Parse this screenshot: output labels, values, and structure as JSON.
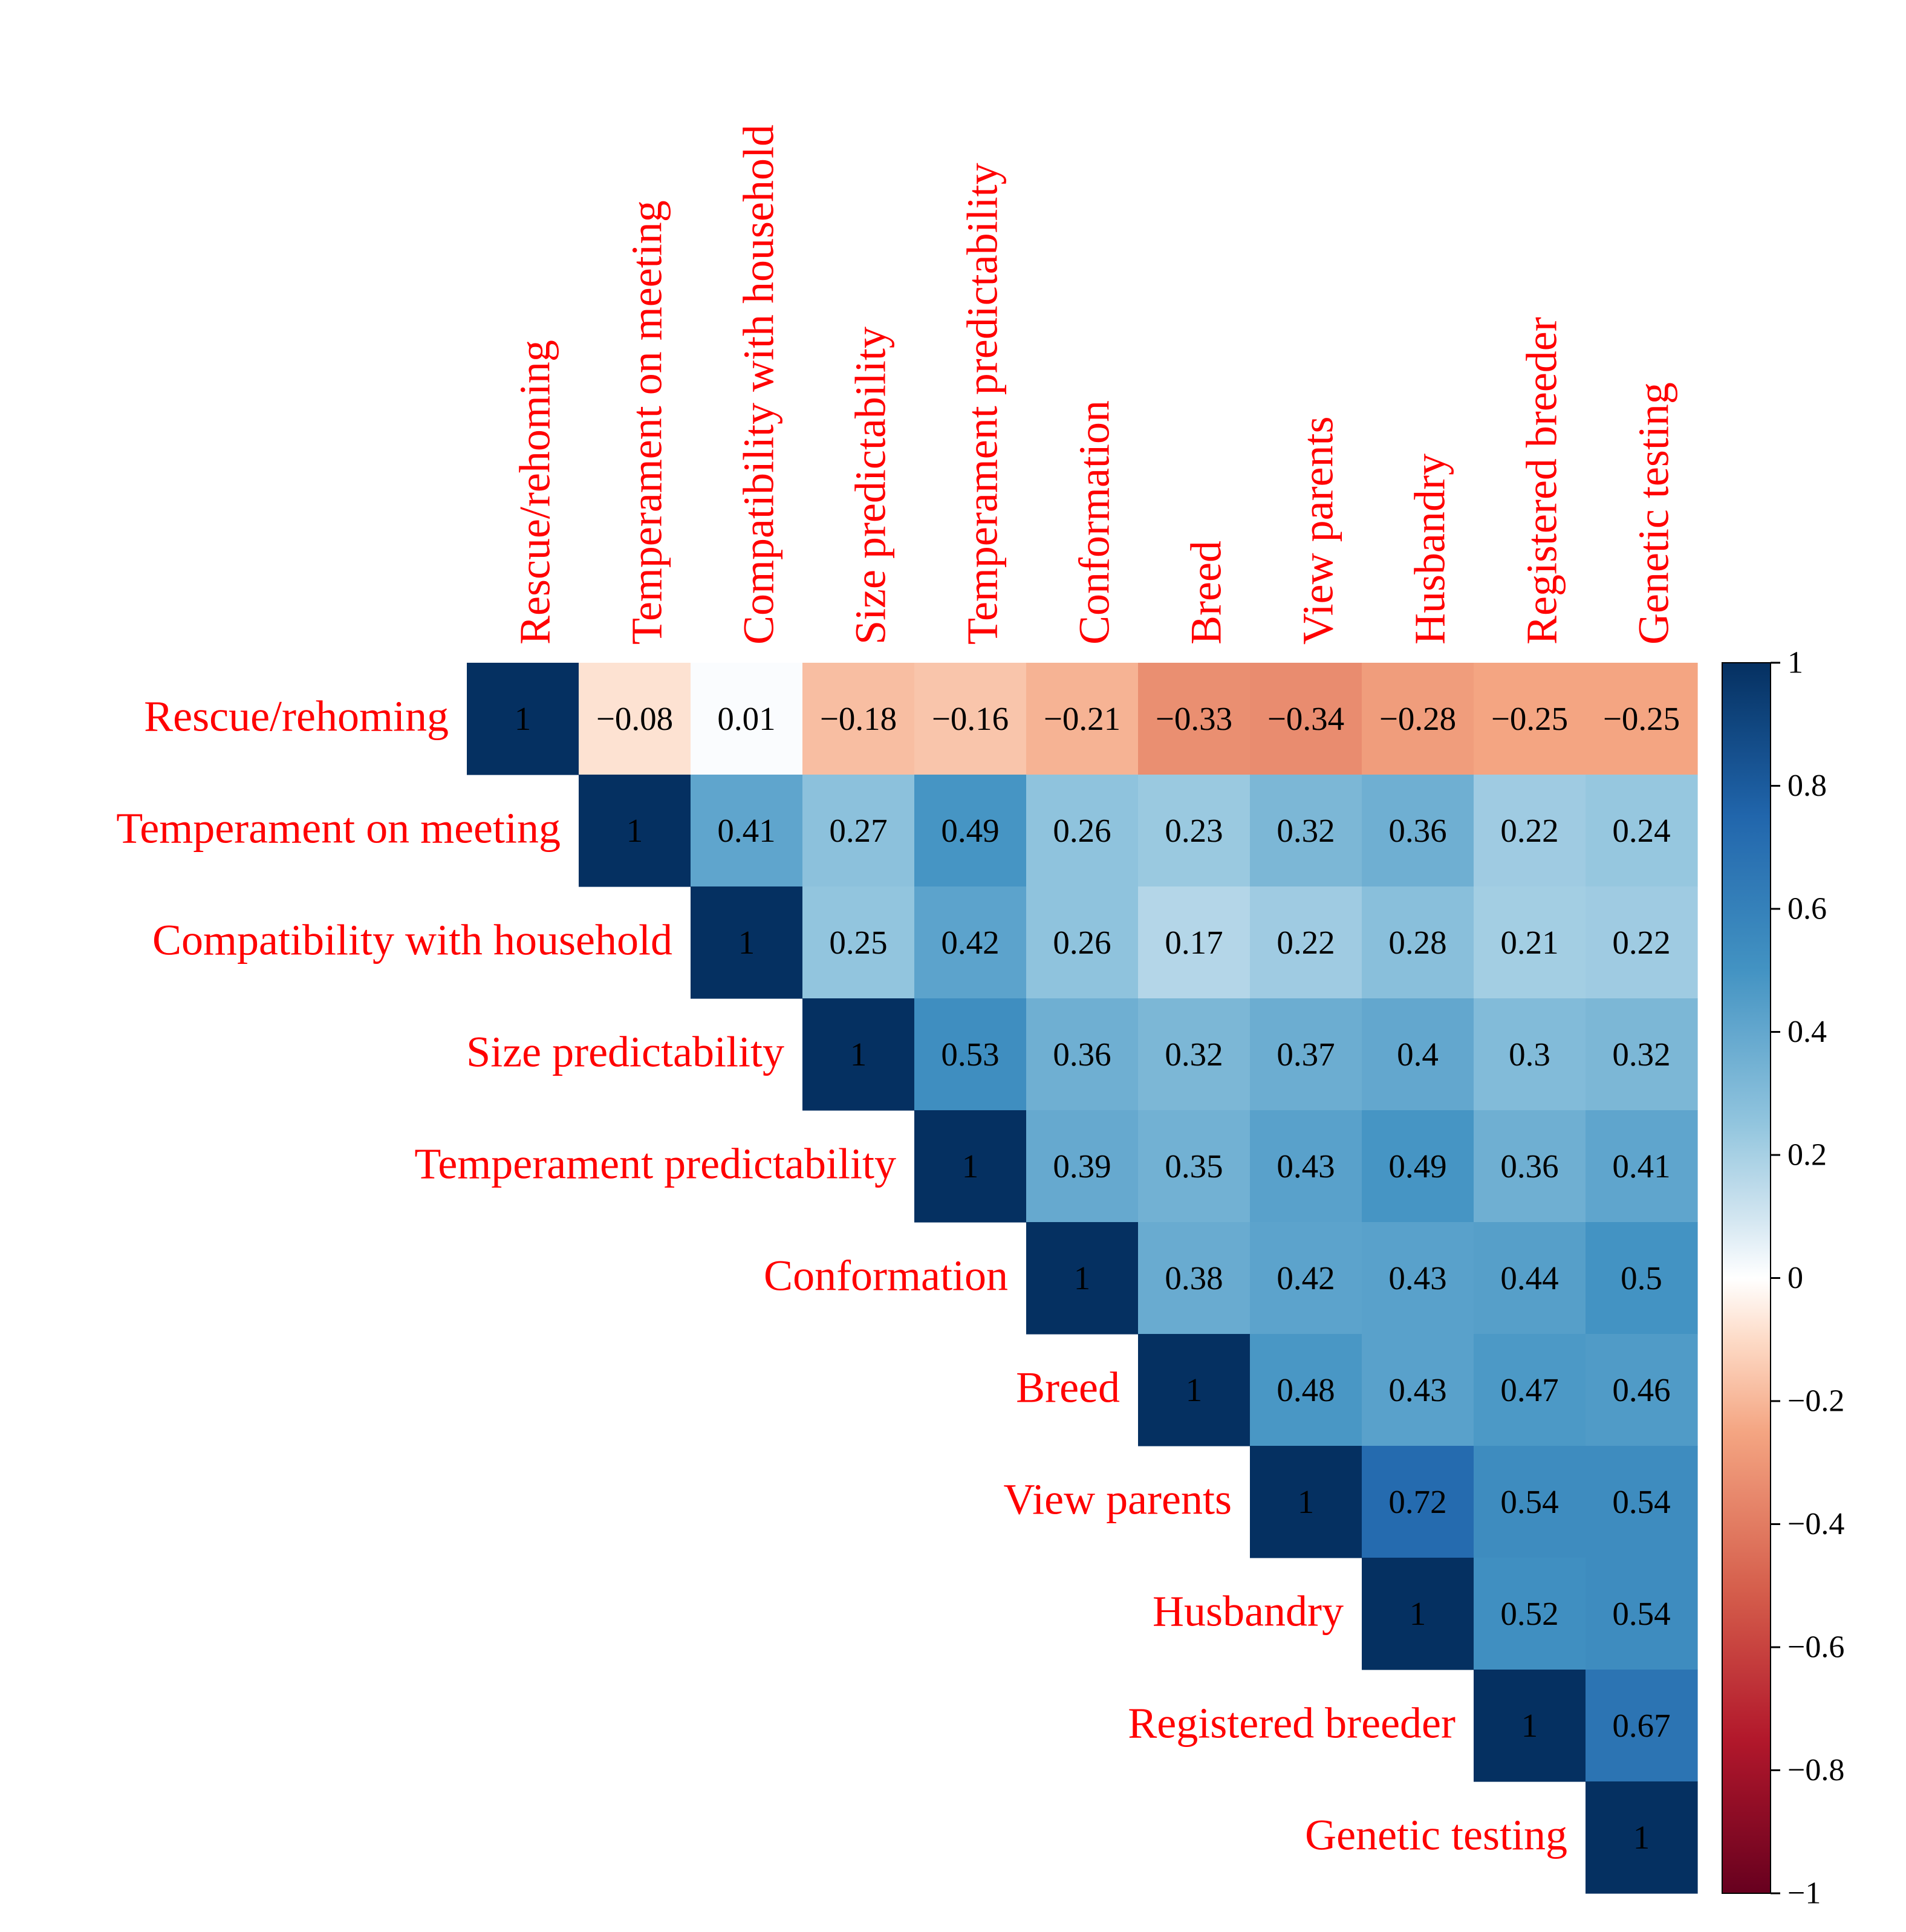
{
  "chart_data": {
    "type": "heatmap",
    "title": "",
    "variables": [
      "Rescue/rehoming",
      "Temperament on meeting",
      "Compatibility with household",
      "Size predictability",
      "Temperament predictability",
      "Conformation",
      "Breed",
      "View parents",
      "Husbandry",
      "Registered breeder",
      "Genetic testing"
    ],
    "matrix_upper": [
      [
        1,
        -0.08,
        0.01,
        -0.18,
        -0.16,
        -0.21,
        -0.33,
        -0.34,
        -0.28,
        -0.25,
        -0.25
      ],
      [
        null,
        1,
        0.41,
        0.27,
        0.49,
        0.26,
        0.23,
        0.32,
        0.36,
        0.22,
        0.24
      ],
      [
        null,
        null,
        1,
        0.25,
        0.42,
        0.26,
        0.17,
        0.22,
        0.28,
        0.21,
        0.22
      ],
      [
        null,
        null,
        null,
        1,
        0.53,
        0.36,
        0.32,
        0.37,
        0.4,
        0.3,
        0.32
      ],
      [
        null,
        null,
        null,
        null,
        1,
        0.39,
        0.35,
        0.43,
        0.49,
        0.36,
        0.41
      ],
      [
        null,
        null,
        null,
        null,
        null,
        1,
        0.38,
        0.42,
        0.43,
        0.44,
        0.5
      ],
      [
        null,
        null,
        null,
        null,
        null,
        null,
        1,
        0.48,
        0.43,
        0.47,
        0.46
      ],
      [
        null,
        null,
        null,
        null,
        null,
        null,
        null,
        1,
        0.72,
        0.54,
        0.54
      ],
      [
        null,
        null,
        null,
        null,
        null,
        null,
        null,
        null,
        1,
        0.52,
        0.54
      ],
      [
        null,
        null,
        null,
        null,
        null,
        null,
        null,
        null,
        null,
        1,
        0.67
      ],
      [
        null,
        null,
        null,
        null,
        null,
        null,
        null,
        null,
        null,
        null,
        1
      ]
    ],
    "colorbar": {
      "range": [
        -1,
        1
      ],
      "ticks": [
        1,
        0.8,
        0.6,
        0.4,
        0.2,
        0,
        -0.2,
        -0.4,
        -0.6,
        -0.8,
        -1
      ]
    },
    "colors": {
      "label": "#ff0000",
      "cell_text": "#000000",
      "positive_max": "#053061",
      "negative_max": "#67001f",
      "zero": "#ffffff"
    }
  }
}
